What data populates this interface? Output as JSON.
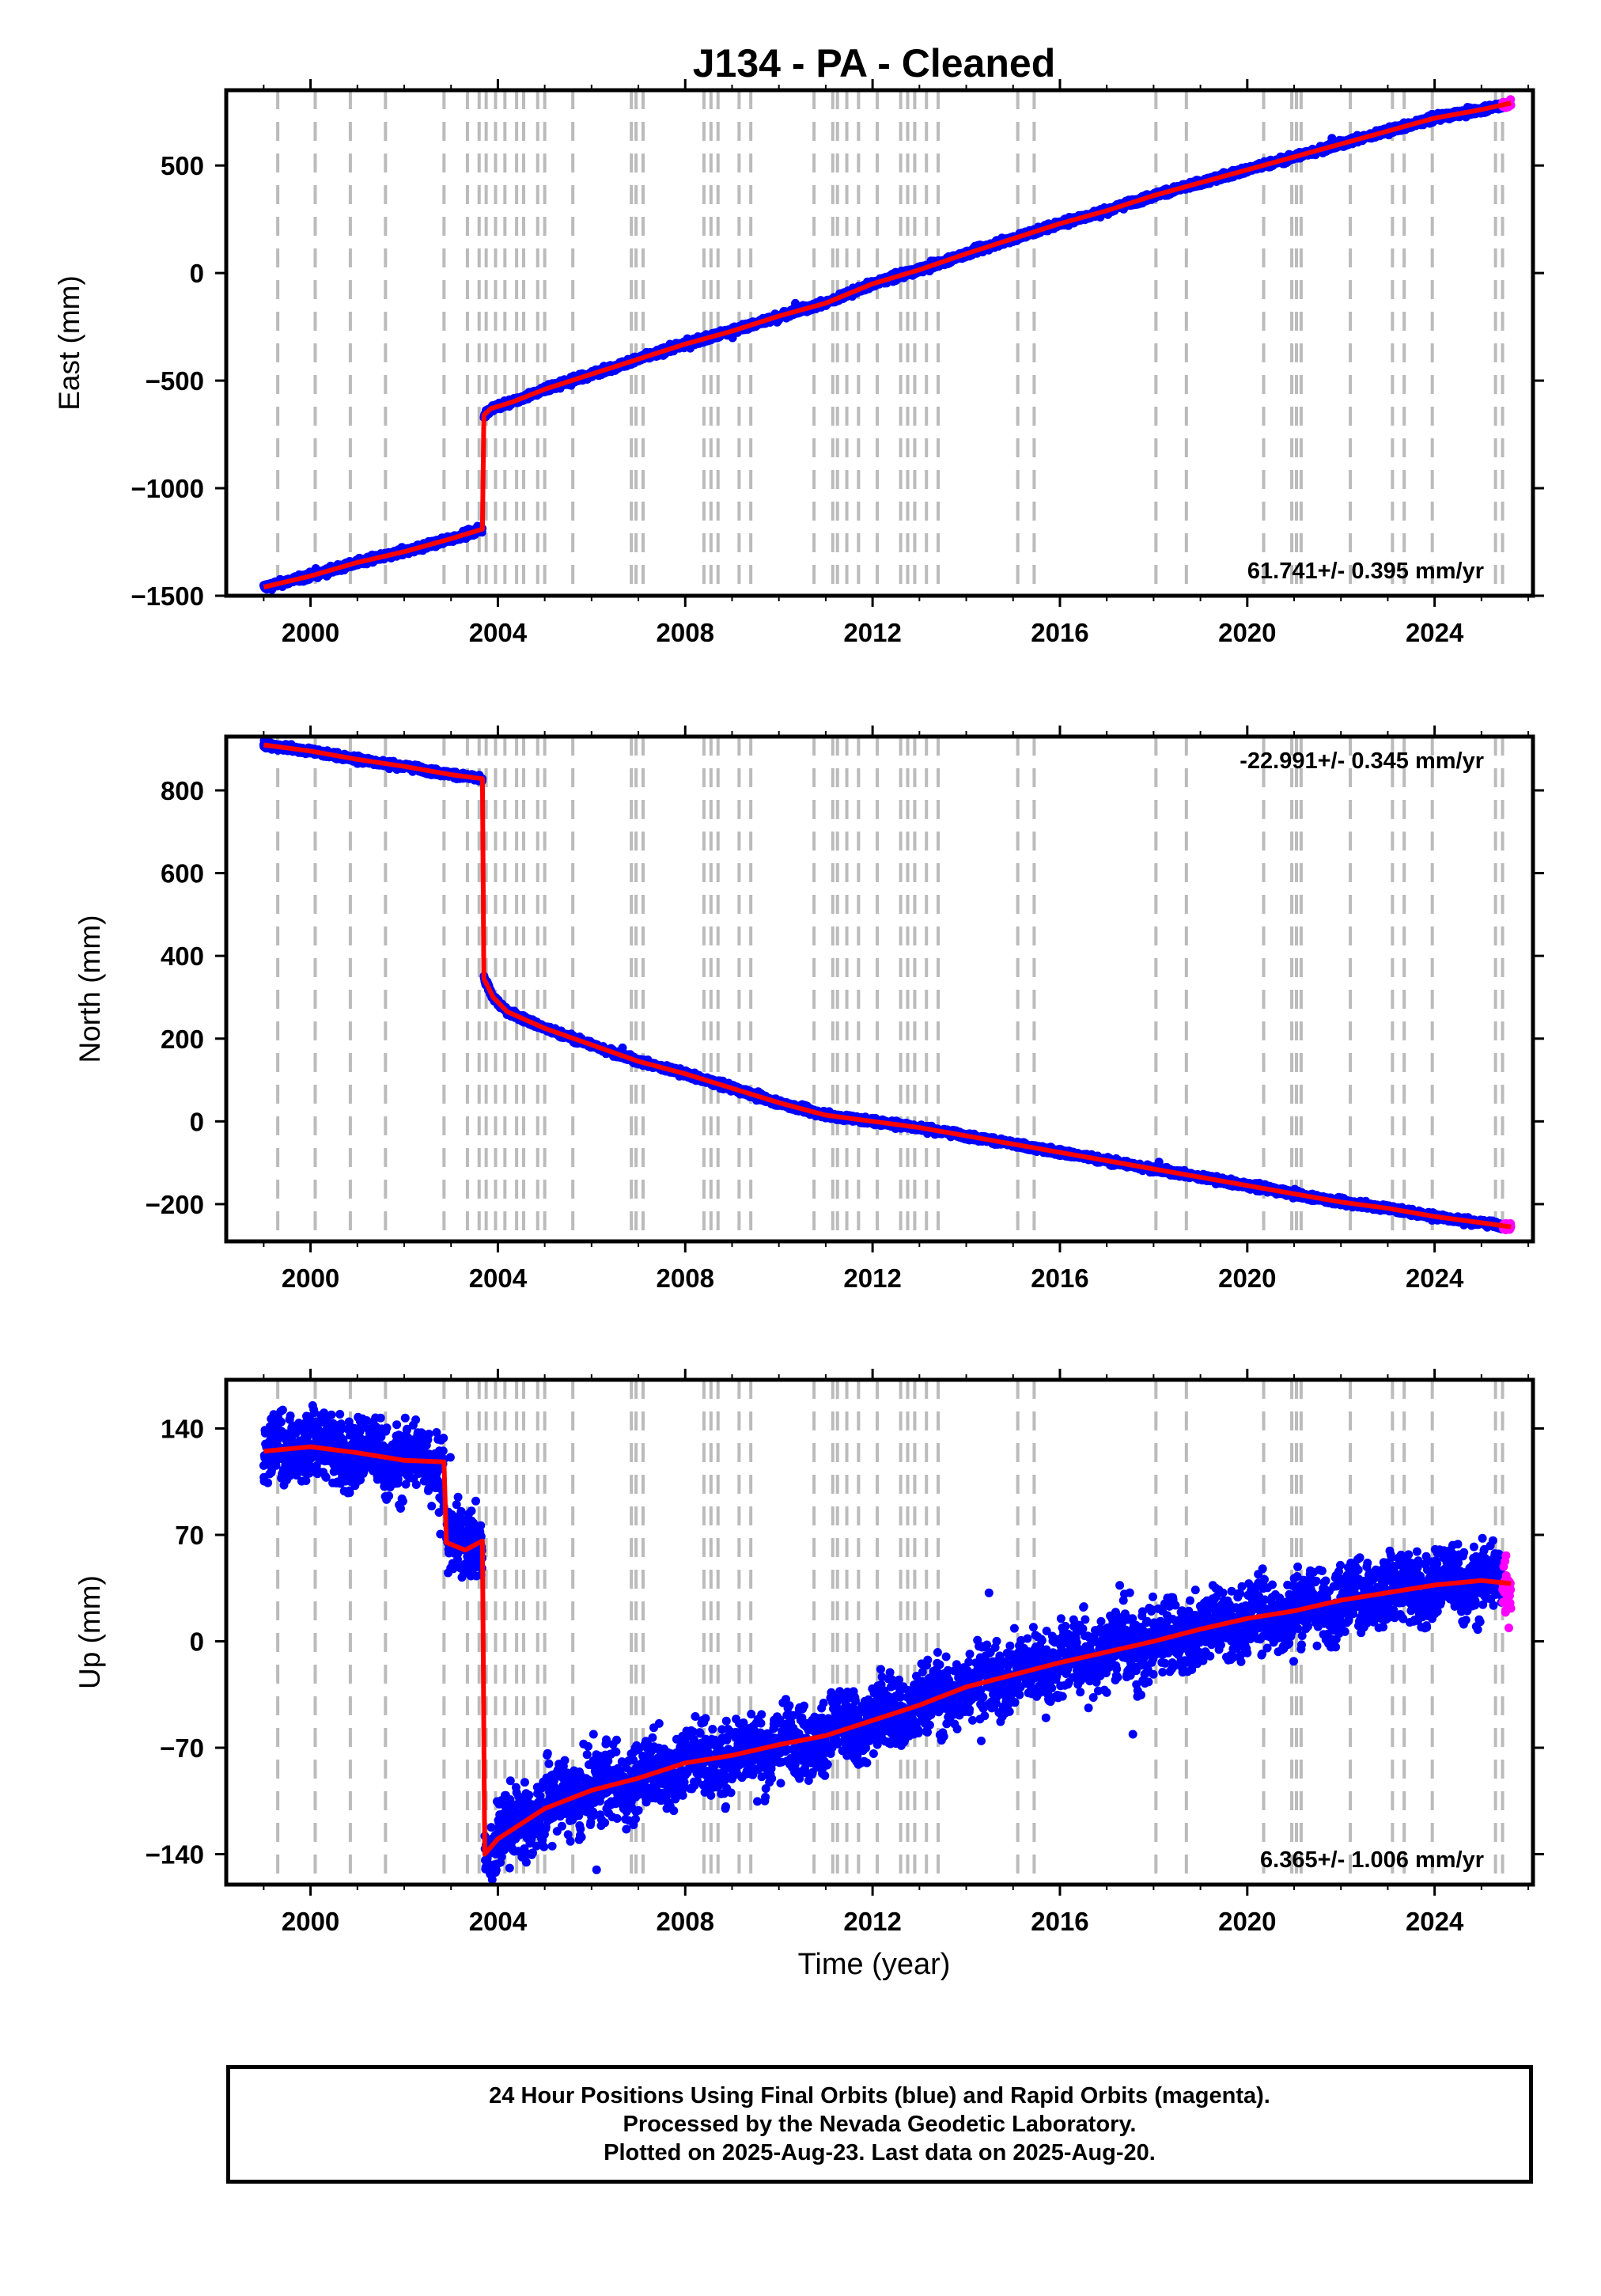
{
  "title": "J134  - PA - Cleaned",
  "xlabel": "Time (year)",
  "colors": {
    "final_orbits": "#0000ff",
    "rapid_orbits": "#ff00ff",
    "model": "#ff0000",
    "event_lines": "#bbbbbb"
  },
  "chart_data": [
    {
      "type": "scatter",
      "name": "east",
      "ylabel": "East (mm)",
      "rate_label": "61.741+/- 0.395 mm/yr",
      "xlim": [
        1998.2,
        2026.1
      ],
      "ylim": [
        -1500,
        850
      ],
      "xticks": [
        2000,
        2004,
        2008,
        2012,
        2016,
        2020,
        2024
      ],
      "xtick_labels": [
        "2000",
        "2004",
        "2008",
        "2012",
        "2016",
        "2020",
        "2024"
      ],
      "yticks": [
        -1500,
        -1000,
        -500,
        0,
        500
      ],
      "ytick_labels": [
        "−1500",
        "−1000",
        "−500",
        "0",
        "500"
      ],
      "data_start": 1999.0,
      "data_end": 2025.63,
      "rapid_start": 2025.45,
      "series": [
        {
          "name": "model",
          "segments": [
            {
              "x": [
                1999.0,
                2000.0,
                2001.0,
                2002.0,
                2003.0,
                2003.67
              ],
              "y": [
                -1460,
                -1408,
                -1345,
                -1295,
                -1235,
                -1190
              ]
            },
            {
              "x": [
                2003.7,
                2003.85,
                2004.3,
                2005.0,
                2006.0,
                2007.0,
                2008.0,
                2009.0,
                2010.0,
                2011.0,
                2012.0,
                2013.0,
                2014.0,
                2015.0,
                2016.0,
                2017.0,
                2018.0,
                2019.0,
                2020.0,
                2021.0,
                2022.0,
                2023.0,
                2024.0,
                2025.0,
                2025.63
              ],
              "y": [
                -660,
                -630,
                -600,
                -540,
                -470,
                -400,
                -330,
                -270,
                -200,
                -140,
                -50,
                15,
                90,
                160,
                230,
                290,
                360,
                420,
                480,
                540,
                600,
                660,
                720,
                760,
                790
              ]
            }
          ]
        }
      ],
      "jitter": 8,
      "outlier_rate": 0.004
    },
    {
      "type": "scatter",
      "name": "north",
      "ylabel": "North (mm)",
      "rate_label": "-22.991+/- 0.345 mm/yr",
      "xlim": [
        1998.2,
        2026.1
      ],
      "ylim": [
        -290,
        930
      ],
      "xticks": [
        2000,
        2004,
        2008,
        2012,
        2016,
        2020,
        2024
      ],
      "xtick_labels": [
        "2000",
        "2004",
        "2008",
        "2012",
        "2016",
        "2020",
        "2024"
      ],
      "yticks": [
        -200,
        0,
        200,
        400,
        600,
        800
      ],
      "ytick_labels": [
        "−200",
        "0",
        "200",
        "400",
        "600",
        "800"
      ],
      "data_start": 1999.0,
      "data_end": 2025.63,
      "rapid_start": 2025.45,
      "series": [
        {
          "name": "model",
          "segments": [
            {
              "x": [
                1999.0,
                2000.0,
                2001.0,
                2002.0,
                2003.0,
                2003.67
              ],
              "y": [
                910,
                895,
                875,
                858,
                838,
                828
              ]
            },
            {
              "x": [
                2003.7,
                2003.9,
                2004.2,
                2004.6,
                2005.0,
                2006.0,
                2007.0,
                2008.0,
                2009.0,
                2010.0,
                2011.0,
                2012.0,
                2013.0,
                2014.0,
                2015.0,
                2016.0,
                2017.0,
                2018.0,
                2019.0,
                2020.0,
                2021.0,
                2022.0,
                2023.0,
                2024.0,
                2025.0,
                2025.63
              ],
              "y": [
                345,
                300,
                265,
                245,
                225,
                185,
                145,
                115,
                80,
                45,
                15,
                0,
                -15,
                -35,
                -55,
                -75,
                -95,
                -115,
                -135,
                -155,
                -175,
                -195,
                -210,
                -230,
                -245,
                -255
              ]
            }
          ]
        }
      ],
      "jitter": 4,
      "outlier_rate": 0.004
    },
    {
      "type": "scatter",
      "name": "up",
      "ylabel": "Up (mm)",
      "rate_label": "6.365+/- 1.006 mm/yr",
      "xlim": [
        1998.2,
        2026.1
      ],
      "ylim": [
        -160,
        172
      ],
      "xticks": [
        2000,
        2004,
        2008,
        2012,
        2016,
        2020,
        2024
      ],
      "xtick_labels": [
        "2000",
        "2004",
        "2008",
        "2012",
        "2016",
        "2020",
        "2024"
      ],
      "yticks": [
        -140,
        -70,
        0,
        70,
        140
      ],
      "ytick_labels": [
        "−140",
        "−70",
        "0",
        "70",
        "140"
      ],
      "data_start": 1999.0,
      "data_end": 2025.63,
      "rapid_start": 2025.45,
      "series": [
        {
          "name": "model",
          "segments": [
            {
              "x": [
                1999.0,
                2000.0,
                2001.0,
                2002.0,
                2002.85
              ],
              "y": [
                125,
                128,
                124,
                119,
                118
              ]
            },
            {
              "x": [
                2002.9,
                2003.3,
                2003.67
              ],
              "y": [
                65,
                60,
                66
              ]
            },
            {
              "x": [
                2003.72,
                2004.0,
                2004.5,
                2005.0,
                2006.0,
                2007.0,
                2008.0,
                2009.0,
                2010.0,
                2011.0,
                2012.0,
                2013.0,
                2014.0,
                2015.0,
                2016.0,
                2017.0,
                2018.0,
                2019.0,
                2020.0,
                2021.0,
                2022.0,
                2023.0,
                2024.0,
                2025.0,
                2025.63
              ],
              "y": [
                -140,
                -130,
                -120,
                -110,
                -98,
                -90,
                -80,
                -75,
                -68,
                -62,
                -52,
                -42,
                -30,
                -22,
                -14,
                -7,
                0,
                8,
                15,
                20,
                27,
                32,
                37,
                40,
                38
              ]
            }
          ]
        }
      ],
      "seasonal_amp": 5,
      "jitter": 12,
      "outlier_rate": 0.006
    }
  ],
  "event_lines": [
    1999.3,
    2000.1,
    2000.85,
    2001.6,
    2002.85,
    2003.35,
    2003.6,
    2003.75,
    2003.95,
    2004.15,
    2004.4,
    2004.55,
    2004.85,
    2005.0,
    2005.6,
    2006.85,
    2006.95,
    2007.1,
    2008.4,
    2008.55,
    2008.7,
    2009.15,
    2009.4,
    2010.75,
    2011.15,
    2011.25,
    2011.45,
    2011.7,
    2012.1,
    2012.6,
    2012.75,
    2012.9,
    2013.15,
    2013.4,
    2015.1,
    2015.45,
    2018.05,
    2018.7,
    2020.35,
    2020.95,
    2021.05,
    2021.15,
    2022.2,
    2023.1,
    2023.35,
    2023.95,
    2025.3,
    2025.45
  ],
  "footer": {
    "line1": "24 Hour Positions Using Final Orbits (blue) and Rapid Orbits (magenta).",
    "line2": "Processed by the Nevada Geodetic Laboratory.",
    "line3": "Plotted on 2025-Aug-23. Last data on 2025-Aug-20."
  }
}
